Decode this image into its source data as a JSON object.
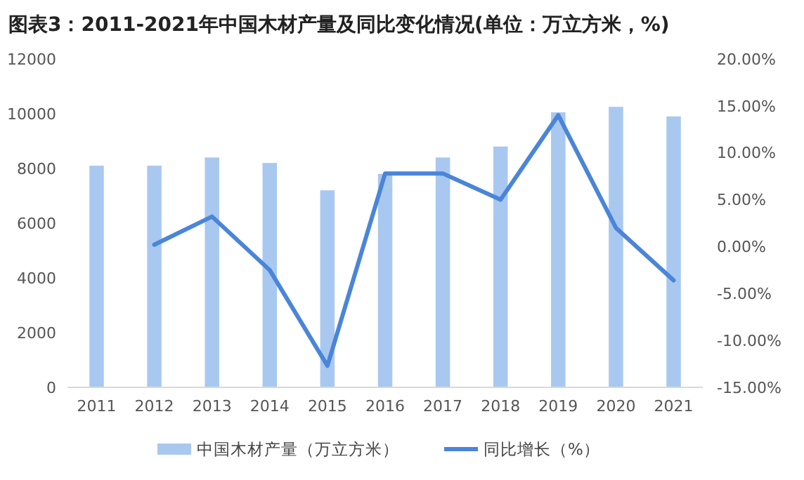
{
  "chart_data": {
    "type": "bar",
    "title": "图表3：2011-2021年中国木材产量及同比变化情况(单位：万立方米，%)",
    "categories": [
      "2011",
      "2012",
      "2013",
      "2014",
      "2015",
      "2016",
      "2017",
      "2018",
      "2019",
      "2020",
      "2021"
    ],
    "series": [
      {
        "name": "中国木材产量（万立方米）",
        "color": "#a9c8f0",
        "values": [
          8100,
          8100,
          8400,
          8200,
          7200,
          7800,
          8400,
          8800,
          10050,
          10250,
          9900
        ]
      },
      {
        "name": "同比增长（%）",
        "type": "line",
        "axis": "y2",
        "color": "#4a85d8",
        "values": [
          null,
          0.2,
          3.2,
          -2.5,
          -12.7,
          7.8,
          7.8,
          5.0,
          14.0,
          2.0,
          -3.6
        ]
      }
    ],
    "ylim": [
      0,
      12000
    ],
    "yticks": [
      0,
      2000,
      4000,
      6000,
      8000,
      10000,
      12000
    ],
    "y2lim": [
      -15,
      20
    ],
    "y2ticks": [
      {
        "value": -15,
        "label": "-15.00%"
      },
      {
        "value": -10,
        "label": "-10.00%"
      },
      {
        "value": -5,
        "label": "-5.00%"
      },
      {
        "value": 0,
        "label": "0.00%"
      },
      {
        "value": 5,
        "label": "5.00%"
      },
      {
        "value": 10,
        "label": "10.00%"
      },
      {
        "value": 15,
        "label": "15.00%"
      },
      {
        "value": 20,
        "label": "20.00%"
      }
    ],
    "legend": "bottom",
    "grid": false,
    "marker": "none"
  }
}
